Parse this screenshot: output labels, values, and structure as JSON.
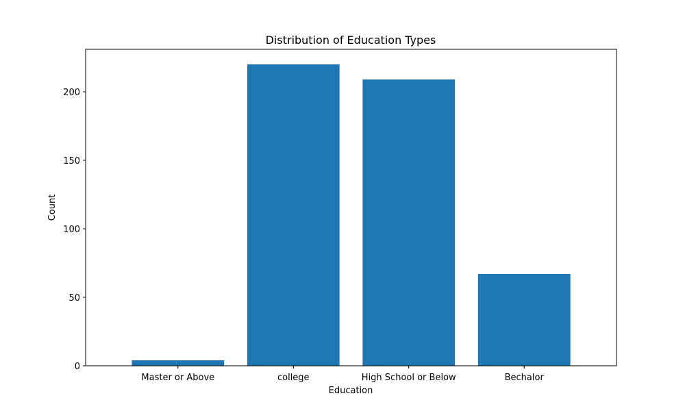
{
  "chart_data": {
    "type": "bar",
    "title": "Distribution of Education Types",
    "xlabel": "Education",
    "ylabel": "Count",
    "categories": [
      "Master or Above",
      "college",
      "High School or Below",
      "Bechalor"
    ],
    "values": [
      4,
      220,
      209,
      67
    ],
    "ylim": [
      0,
      231
    ],
    "yticks": [
      0,
      50,
      100,
      150,
      200
    ],
    "grid": false,
    "legend": "none",
    "bar_color": "#1f77b4"
  }
}
